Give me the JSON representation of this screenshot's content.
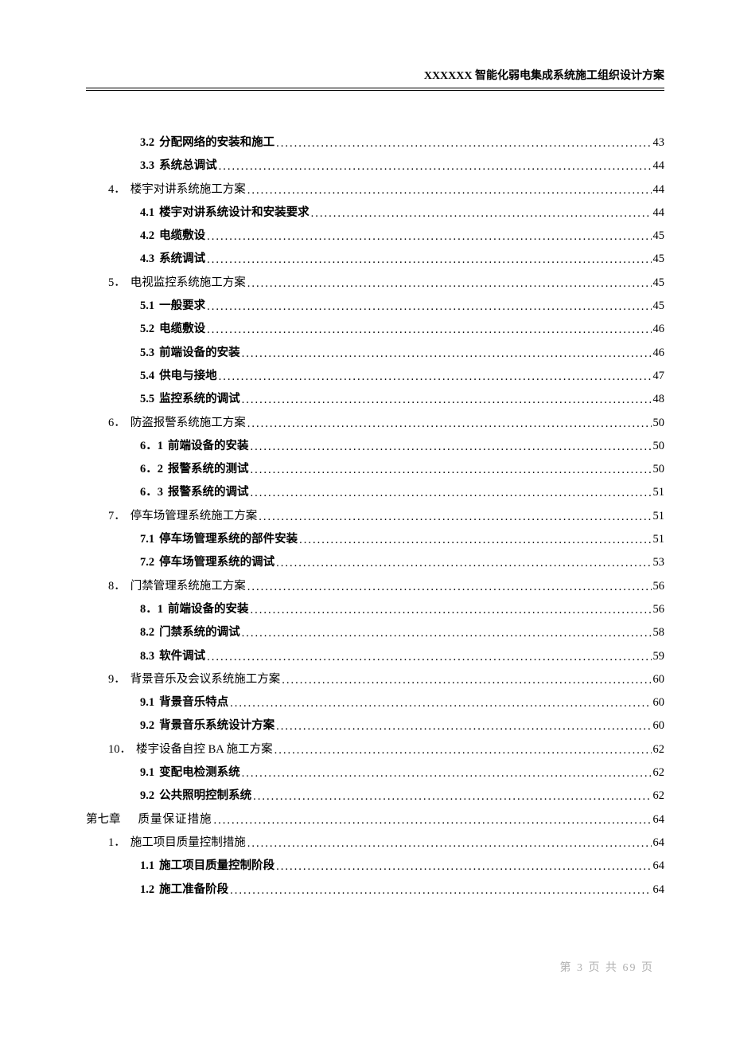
{
  "header": {
    "title": "XXXXXX 智能化弱电集成系统施工组织设计方案"
  },
  "toc": [
    {
      "level": 2,
      "num": "3.2",
      "label": "分配网络的安装和施工",
      "page": "43"
    },
    {
      "level": 2,
      "num": "3.3",
      "label": "系统总调试",
      "page": "44"
    },
    {
      "level": 1,
      "num": "4．",
      "label": "楼宇对讲系统施工方案",
      "page": "44"
    },
    {
      "level": 2,
      "num": "4.1",
      "label": "楼宇对讲系统设计和安装要求",
      "page": "44"
    },
    {
      "level": 2,
      "num": "4.2",
      "label": "电缆敷设",
      "page": "45"
    },
    {
      "level": 2,
      "num": "4.3",
      "label": "系统调试",
      "page": "45"
    },
    {
      "level": 1,
      "num": "5．",
      "label": "电视监控系统施工方案",
      "page": "45"
    },
    {
      "level": 2,
      "num": "5.1",
      "label": "一般要求",
      "page": "45"
    },
    {
      "level": 2,
      "num": "5.2",
      "label": "电缆敷设",
      "page": "46"
    },
    {
      "level": 2,
      "num": "5.3",
      "label": "前端设备的安装",
      "page": "46"
    },
    {
      "level": 2,
      "num": "5.4",
      "label": "供电与接地",
      "page": "47"
    },
    {
      "level": 2,
      "num": "5.5",
      "label": "监控系统的调试",
      "page": "48"
    },
    {
      "level": 1,
      "num": "6．",
      "label": "防盗报警系统施工方案",
      "page": "50"
    },
    {
      "level": 2,
      "num": "6．1",
      "label": "前端设备的安装",
      "page": "50"
    },
    {
      "level": 2,
      "num": "6．2",
      "label": "报警系统的测试",
      "page": "50"
    },
    {
      "level": 2,
      "num": "6．3",
      "label": "报警系统的调试",
      "page": "51"
    },
    {
      "level": 1,
      "num": "7．",
      "label": "停车场管理系统施工方案",
      "page": "51"
    },
    {
      "level": 2,
      "num": "7.1",
      "label": "停车场管理系统的部件安装",
      "page": "51"
    },
    {
      "level": 2,
      "num": "7.2",
      "label": "停车场管理系统的调试",
      "page": "53"
    },
    {
      "level": 1,
      "num": "8．",
      "label": "门禁管理系统施工方案",
      "page": "56"
    },
    {
      "level": 2,
      "num": "8．1",
      "label": "前端设备的安装",
      "page": "56"
    },
    {
      "level": 2,
      "num": "8.2",
      "label": "门禁系统的调试",
      "page": "58"
    },
    {
      "level": 2,
      "num": "8.3",
      "label": "软件调试",
      "page": "59"
    },
    {
      "level": 1,
      "num": "9．",
      "label": "背景音乐及会议系统施工方案",
      "page": "60"
    },
    {
      "level": 2,
      "num": "9.1",
      "label": "背景音乐特点",
      "page": "60"
    },
    {
      "level": 2,
      "num": "9.2",
      "label": "背景音乐系统设计方案",
      "page": "60"
    },
    {
      "level": 1,
      "num": "10．",
      "label": "楼宇设备自控 BA 施工方案",
      "page": "62"
    },
    {
      "level": 2,
      "num": "9.1",
      "label": "变配电检测系统",
      "page": "62"
    },
    {
      "level": 2,
      "num": "9.2",
      "label": "公共照明控制系统",
      "page": "62"
    },
    {
      "level": 0,
      "num": "第七章",
      "label": "质量保证措施",
      "page": "64",
      "gap": true
    },
    {
      "level": 1,
      "num": "1．",
      "label": "施工项目质量控制措施",
      "page": "64"
    },
    {
      "level": 2,
      "num": "1.1",
      "label": "施工项目质量控制阶段",
      "page": "64"
    },
    {
      "level": 2,
      "num": "1.2",
      "label": "施工准备阶段",
      "page": "64"
    }
  ],
  "footer": {
    "text": "第 3 页 共 69 页"
  }
}
